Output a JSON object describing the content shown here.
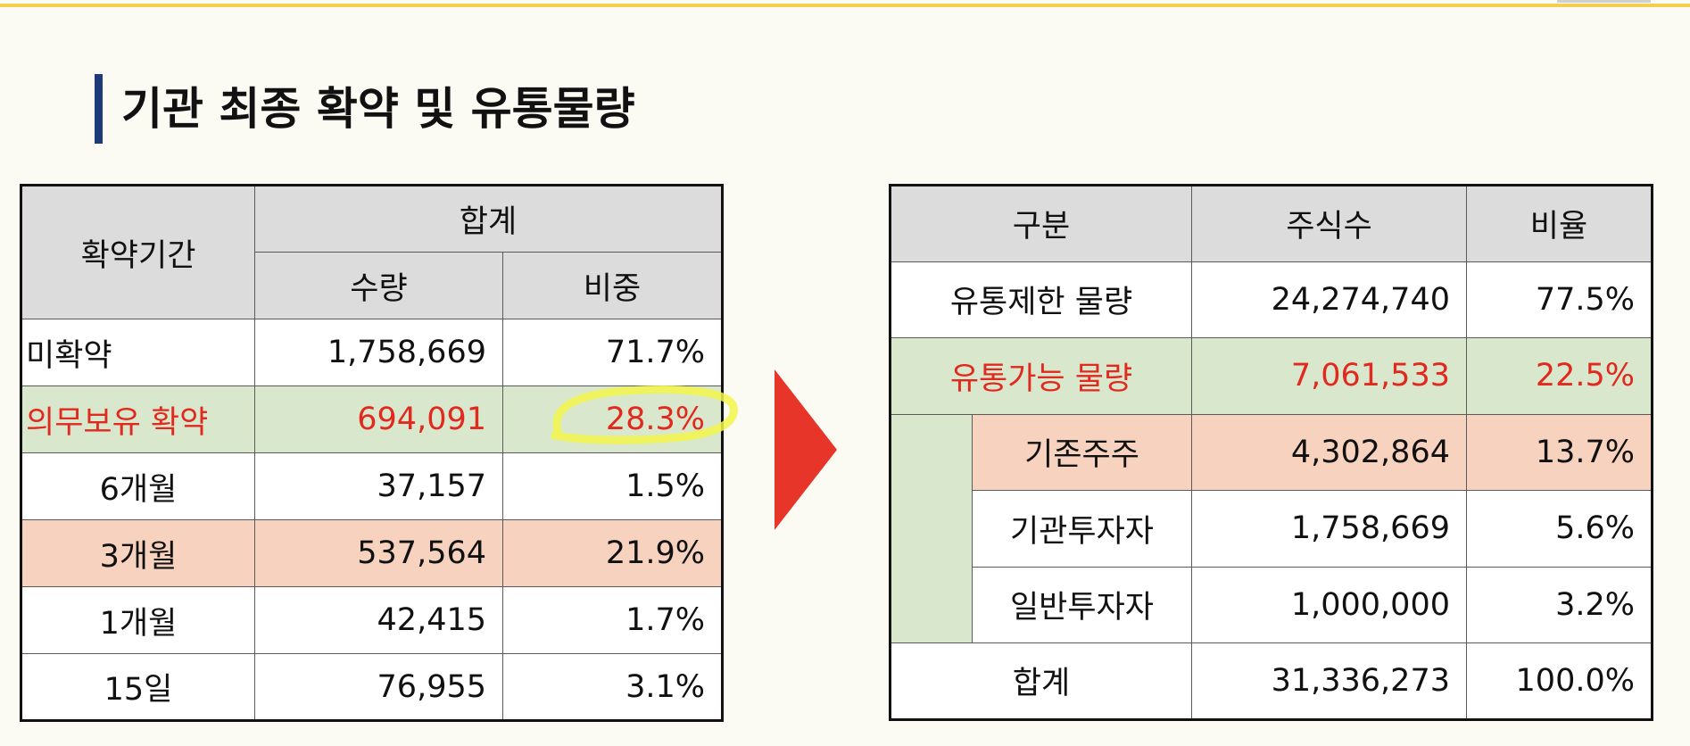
{
  "slide": {
    "title": "기관 최종 확약 및 유통물량"
  },
  "lockup_table": {
    "header_period": "확약기간",
    "header_total": "합계",
    "header_qty": "수량",
    "header_share": "비중",
    "rows": [
      {
        "label": "미확약",
        "qty": "1,758,669",
        "share": "71.7%"
      },
      {
        "label": "의무보유 확약",
        "qty": "694,091",
        "share": "28.3%"
      },
      {
        "label": "6개월",
        "qty": "37,157",
        "share": "1.5%"
      },
      {
        "label": "3개월",
        "qty": "537,564",
        "share": "21.9%"
      },
      {
        "label": "1개월",
        "qty": "42,415",
        "share": "1.7%"
      },
      {
        "label": "15일",
        "qty": "76,955",
        "share": "3.1%"
      }
    ]
  },
  "float_table": {
    "header_category": "구분",
    "header_shares": "주식수",
    "header_ratio": "비율",
    "rows": [
      {
        "label": "유통제한 물량",
        "shares": "24,274,740",
        "ratio": "77.5%"
      },
      {
        "label": "유통가능 물량",
        "shares": "7,061,533",
        "ratio": "22.5%"
      },
      {
        "label": "기존주주",
        "shares": "4,302,864",
        "ratio": "13.7%"
      },
      {
        "label": "기관투자자",
        "shares": "1,758,669",
        "ratio": "5.6%"
      },
      {
        "label": "일반투자자",
        "shares": "1,000,000",
        "ratio": "3.2%"
      },
      {
        "label": "합계",
        "shares": "31,336,273",
        "ratio": "100.0%"
      }
    ]
  },
  "colors": {
    "accent_red": "#e0291f",
    "green_fill": "#d9e8cc",
    "peach_fill": "#f6d2bf",
    "header_gray": "#dcdcdc",
    "title_bar": "#1f3a78",
    "highlighter": "#f2f54a"
  }
}
